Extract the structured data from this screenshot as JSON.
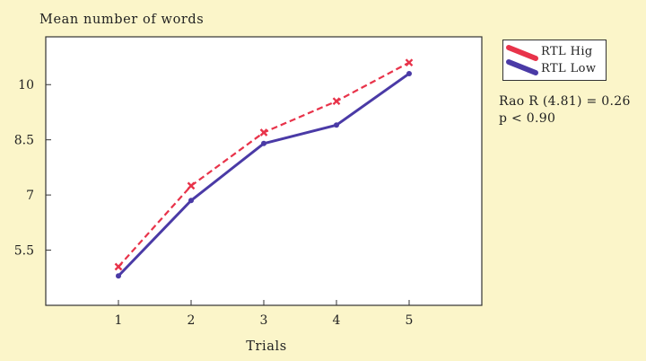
{
  "chart_data": {
    "type": "line",
    "title": "",
    "ylabel": "Mean number of words",
    "xlabel": "Trials",
    "x": [
      1,
      2,
      3,
      4,
      5
    ],
    "x_ticks": [
      "1",
      "2",
      "3",
      "4",
      "5"
    ],
    "xlim": [
      0,
      6
    ],
    "y_ticks": [
      "5.5",
      "7",
      "8.5",
      "10"
    ],
    "y_tick_values": [
      5.5,
      7,
      8.5,
      10
    ],
    "ylim": [
      4.0,
      11.3
    ],
    "grid": false,
    "legend_position": "right",
    "series": [
      {
        "name": "RTL Hig",
        "values": [
          5.05,
          7.25,
          8.7,
          9.55,
          10.6
        ],
        "color": "#e8334a",
        "style": "dashed",
        "marker": "x"
      },
      {
        "name": "RTL Low",
        "values": [
          4.8,
          6.85,
          8.4,
          8.9,
          10.3
        ],
        "color": "#4a3aa6",
        "style": "solid",
        "marker": "dot"
      }
    ]
  },
  "stats": {
    "line1": "Rao R (4.81) = 0.26",
    "line2": "p < 0.90"
  }
}
